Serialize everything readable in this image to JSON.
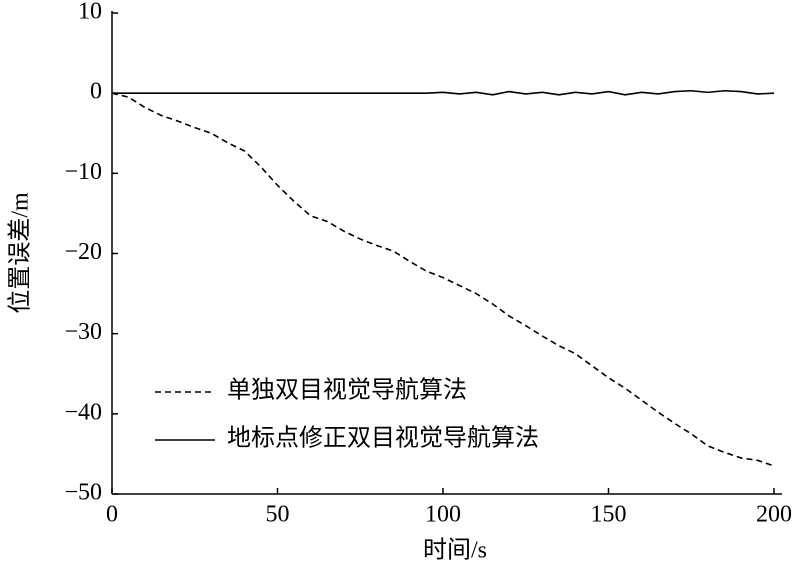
{
  "chart_data": {
    "type": "line",
    "xlabel": "时间/s",
    "ylabel": "位置误差/m",
    "x": [
      0,
      5,
      10,
      15,
      20,
      25,
      30,
      35,
      40,
      45,
      50,
      55,
      60,
      65,
      70,
      75,
      80,
      85,
      90,
      95,
      100,
      105,
      110,
      115,
      120,
      125,
      130,
      135,
      140,
      145,
      150,
      155,
      160,
      165,
      170,
      175,
      180,
      185,
      190,
      195,
      200
    ],
    "series": [
      {
        "name": "单独双目视觉导航算法",
        "color": "#000000",
        "line_style": "dashed",
        "values": [
          0,
          -0.5,
          -1.8,
          -2.8,
          -3.5,
          -4.3,
          -5.0,
          -6.2,
          -7.2,
          -9.2,
          -11.5,
          -13.5,
          -15.3,
          -16.0,
          -17.2,
          -18.2,
          -19.0,
          -19.7,
          -21.0,
          -22.2,
          -23.0,
          -24.0,
          -25.0,
          -26.3,
          -27.8,
          -29.0,
          -30.3,
          -31.5,
          -32.5,
          -34.0,
          -35.5,
          -36.8,
          -38.3,
          -39.8,
          -41.2,
          -42.5,
          -44.0,
          -44.8,
          -45.5,
          -45.8,
          -46.5
        ]
      },
      {
        "name": "地标点修正双目视觉导航算法",
        "color": "#000000",
        "line_style": "solid",
        "values": [
          0,
          0,
          0,
          0,
          0,
          0,
          0,
          0,
          0,
          0,
          0,
          0,
          0,
          0,
          0,
          0,
          0,
          0,
          0,
          0,
          0.1,
          -0.1,
          0.1,
          -0.2,
          0.2,
          -0.1,
          0.1,
          -0.2,
          0.1,
          -0.1,
          0.2,
          -0.2,
          0.1,
          -0.1,
          0.2,
          0.3,
          0.1,
          0.3,
          0.2,
          -0.1,
          0
        ]
      }
    ],
    "xlim": [
      0,
      200
    ],
    "xticks": [
      0,
      50,
      100,
      150,
      200
    ],
    "ylim": [
      -50,
      10
    ],
    "yticks": [
      {
        "value": -50,
        "label": "−50"
      },
      {
        "value": -40,
        "label": "−40"
      },
      {
        "value": -30,
        "label": "−30"
      },
      {
        "value": -20,
        "label": "−20"
      },
      {
        "value": -10,
        "label": "−10"
      },
      0,
      10
    ],
    "grid": false,
    "legend": "lower center"
  }
}
